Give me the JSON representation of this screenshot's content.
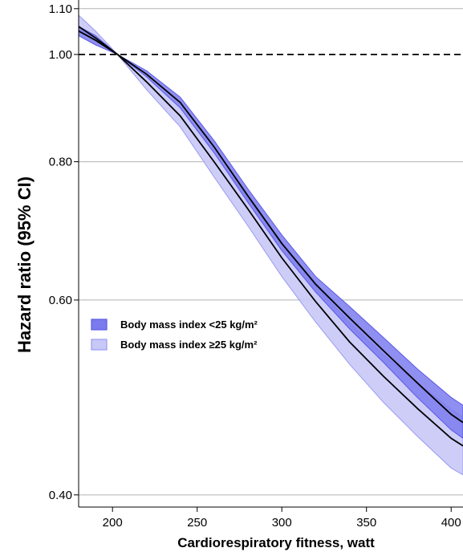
{
  "chart_data": {
    "type": "area",
    "title": "",
    "xlabel": "Cardiorespiratory fitness, watt",
    "ylabel": "Hazard ratio (95% CI)",
    "xlim": [
      180,
      407
    ],
    "ylim": [
      0.39,
      1.12
    ],
    "y_scale": "log",
    "x_ticks": [
      200,
      250,
      300,
      350,
      400
    ],
    "y_ticks": [
      0.4,
      0.6,
      0.8,
      1.0,
      1.1
    ],
    "y_tick_labels": [
      "0.40",
      "0.60",
      "0.80",
      "1.00",
      "1.10"
    ],
    "reference_line": {
      "y": 1.0,
      "style": "dashed"
    },
    "grid": "horizontal",
    "legend_position": "center-left",
    "series": [
      {
        "name": "Body mass index <25 kg/m²",
        "color": "#5a5ae6",
        "fill": "#7b7bee",
        "x": [
          180,
          190,
          203,
          220,
          240,
          260,
          280,
          300,
          320,
          340,
          360,
          380,
          400,
          407
        ],
        "y": [
          1.05,
          1.03,
          1.0,
          0.96,
          0.905,
          0.825,
          0.745,
          0.675,
          0.62,
          0.578,
          0.54,
          0.505,
          0.473,
          0.465
        ],
        "lower": [
          1.04,
          1.02,
          1.0,
          0.955,
          0.895,
          0.815,
          0.735,
          0.665,
          0.61,
          0.565,
          0.527,
          0.49,
          0.458,
          0.45
        ],
        "upper": [
          1.06,
          1.04,
          1.0,
          0.967,
          0.915,
          0.836,
          0.756,
          0.687,
          0.63,
          0.592,
          0.555,
          0.52,
          0.49,
          0.482
        ]
      },
      {
        "name": "Body mass index ≥25 kg/m²",
        "color": "#9a9af0",
        "fill": "#c8c8f7",
        "x": [
          180,
          190,
          203,
          220,
          240,
          260,
          280,
          300,
          320,
          340,
          360,
          380,
          400,
          407
        ],
        "y": [
          1.06,
          1.035,
          1.0,
          0.945,
          0.88,
          0.8,
          0.725,
          0.655,
          0.598,
          0.55,
          0.512,
          0.479,
          0.45,
          0.443
        ],
        "lower": [
          1.055,
          1.03,
          1.0,
          0.93,
          0.86,
          0.775,
          0.7,
          0.63,
          0.573,
          0.525,
          0.485,
          0.452,
          0.423,
          0.417
        ],
        "upper": [
          1.085,
          1.05,
          1.0,
          0.955,
          0.895,
          0.815,
          0.742,
          0.674,
          0.618,
          0.572,
          0.535,
          0.505,
          0.478,
          0.47
        ]
      }
    ]
  }
}
